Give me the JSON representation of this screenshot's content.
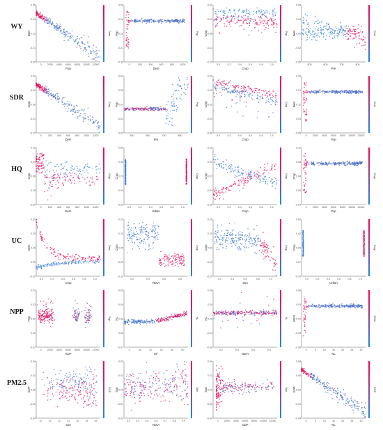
{
  "colors": {
    "low": "#1e88e5",
    "high": "#ff0052",
    "axis": "#333333",
    "tick": "#555555"
  },
  "rows": [
    {
      "label": "WY"
    },
    {
      "label": "SDR"
    },
    {
      "label": "HQ"
    },
    {
      "label": "UC"
    },
    {
      "label": "NPP"
    },
    {
      "label": "PM2.5"
    }
  ],
  "chart_data": [
    {
      "type": "scatter",
      "row": "WY",
      "xlabel": "Pop",
      "ylabel": "Dem",
      "clabel": "Dem",
      "shape": "decay_noisy",
      "xlim": [
        0,
        12000
      ],
      "ylim": [
        -0.3,
        0.05
      ],
      "xticks": [
        "0",
        "2000",
        "4000",
        "6000",
        "8000",
        "10000",
        "12000"
      ]
    },
    {
      "type": "scatter",
      "row": "WY",
      "xlabel": "Dem",
      "ylabel": "Pop",
      "clabel": "Pop",
      "shape": "spike_flat",
      "xlim": [
        0,
        1000
      ],
      "ylim": [
        -0.3,
        0.05
      ],
      "xticks": [
        "0",
        "200",
        "400",
        "600",
        "800",
        "1000"
      ]
    },
    {
      "type": "scatter",
      "row": "WY",
      "xlabel": "Crop",
      "ylabel": "Crop",
      "clabel": "Pop",
      "shape": "bands",
      "xlim": [
        0,
        1
      ],
      "ylim": [
        -0.15,
        0.02
      ],
      "xticks": [
        "0.0",
        "0.2",
        "0.4",
        "0.6",
        "0.8",
        "1.0"
      ]
    },
    {
      "type": "scatter",
      "row": "WY",
      "xlabel": "Pre",
      "ylabel": "Dem",
      "clabel": "Dem",
      "shape": "funnel_down",
      "xlim": [
        400,
        900
      ],
      "ylim": [
        -0.05,
        0.05
      ],
      "xticks": [
        "500",
        "600",
        "700",
        "800"
      ]
    },
    {
      "type": "scatter",
      "row": "SDR",
      "xlabel": "Dem",
      "ylabel": "Crop",
      "clabel": "Crop",
      "shape": "decay_noisy",
      "xlim": [
        0,
        1400
      ],
      "ylim": [
        -0.15,
        0.02
      ],
      "xticks": [
        "0",
        "200",
        "400",
        "600",
        "800",
        "1000",
        "1200"
      ]
    },
    {
      "type": "scatter",
      "row": "SDR",
      "xlabel": "Pre",
      "ylabel": "Pop",
      "clabel": "Pop",
      "shape": "step_up",
      "xlim": [
        400,
        900
      ],
      "ylim": [
        -0.02,
        0.04
      ],
      "xticks": [
        "500",
        "600",
        "700",
        "800"
      ]
    },
    {
      "type": "scatter",
      "row": "SDR",
      "xlabel": "Crop",
      "ylabel": "Crop",
      "clabel": "Crop",
      "shape": "slope_bands",
      "xlim": [
        0,
        1
      ],
      "ylim": [
        -0.06,
        0.02
      ],
      "xticks": [
        "0.0",
        "0.2",
        "0.4",
        "0.6",
        "0.8",
        "1.0"
      ]
    },
    {
      "type": "scatter",
      "row": "SDR",
      "xlabel": "Pop",
      "ylabel": "Dem",
      "clabel": "Dem",
      "shape": "spike_flat",
      "xlim": [
        0,
        12000
      ],
      "ylim": [
        -0.05,
        0.3
      ],
      "xticks": [
        "0",
        "2000",
        "4000",
        "6000",
        "8000",
        "10000",
        "12000"
      ]
    },
    {
      "type": "scatter",
      "row": "HQ",
      "xlabel": "Dem",
      "ylabel": "Crop",
      "clabel": "Crop",
      "shape": "split_h",
      "xlim": [
        0,
        1400
      ],
      "ylim": [
        -0.3,
        0.15
      ],
      "xticks": [
        "0",
        "200",
        "400",
        "600",
        "800",
        "1000",
        "1200"
      ]
    },
    {
      "type": "scatter",
      "row": "HQ",
      "xlabel": "Urban",
      "ylabel": "Crop",
      "clabel": "Crop",
      "shape": "vlines",
      "xlim": [
        0,
        1
      ],
      "ylim": [
        -0.2,
        0.6
      ],
      "xticks": [
        "0.0",
        "0.2",
        "0.4",
        "0.6",
        "0.8",
        "1.0"
      ]
    },
    {
      "type": "scatter",
      "row": "HQ",
      "xlabel": "Crop",
      "ylabel": "Crop",
      "clabel": "Crop",
      "shape": "cross",
      "xlim": [
        0,
        1
      ],
      "ylim": [
        -0.15,
        0.1
      ],
      "xticks": [
        "0.0",
        "0.2",
        "0.4",
        "0.6",
        "0.8",
        "1.0"
      ]
    },
    {
      "type": "scatter",
      "row": "HQ",
      "xlabel": "Pop",
      "ylabel": "Crop",
      "clabel": "Crop",
      "shape": "spike_flat",
      "xlim": [
        0,
        12000
      ],
      "ylim": [
        -0.04,
        0.12
      ],
      "xticks": [
        "0",
        "2000",
        "4000",
        "6000",
        "8000",
        "10000",
        "12000"
      ]
    },
    {
      "type": "scatter",
      "row": "UC",
      "xlabel": "Crop",
      "ylabel": "Dem",
      "clabel": "Dem",
      "shape": "decay_two",
      "xlim": [
        0,
        1
      ],
      "ylim": [
        -0.05,
        0.35
      ],
      "xticks": [
        "0.0",
        "0.2",
        "0.4",
        "0.6",
        "0.8",
        "1.0"
      ]
    },
    {
      "type": "scatter",
      "row": "UC",
      "xlabel": "NDVI",
      "ylabel": "Crop",
      "clabel": "Crop",
      "shape": "step_down",
      "xlim": [
        0,
        1
      ],
      "ylim": [
        -0.1,
        0.2
      ],
      "xticks": [
        "0.2",
        "0.4",
        "0.6",
        "0.8"
      ]
    },
    {
      "type": "scatter",
      "row": "UC",
      "xlabel": "Sun",
      "ylabel": "Crop",
      "clabel": "Crop",
      "shape": "fall_end",
      "xlim": [
        0,
        1
      ],
      "ylim": [
        -0.2,
        0.2
      ],
      "xticks": [
        "0.2",
        "0.4",
        "0.6",
        "0.8",
        "1.0"
      ]
    },
    {
      "type": "scatter",
      "row": "UC",
      "xlabel": "Urban",
      "ylabel": "Crop",
      "clabel": "Crop",
      "shape": "vlines",
      "xlim": [
        0,
        1
      ],
      "ylim": [
        -0.1,
        0.6
      ],
      "xticks": [
        "0.0",
        "0.2",
        "0.4",
        "0.6",
        "0.8",
        "1.0"
      ]
    },
    {
      "type": "scatter",
      "row": "NPP",
      "xlabel": "GDP",
      "ylabel": "Pop",
      "clabel": "Pop",
      "shape": "clusters",
      "xlim": [
        0,
        12000
      ],
      "ylim": [
        -0.02,
        0.05
      ],
      "xticks": [
        "0",
        "2000",
        "4000",
        "6000",
        "8000",
        "10000",
        "12000"
      ]
    },
    {
      "type": "scatter",
      "row": "NPP",
      "xlabel": "EF",
      "ylabel": "NL",
      "clabel": "NL",
      "shape": "flat_rise",
      "xlim": [
        0,
        1
      ],
      "ylim": [
        -0.02,
        0.06
      ],
      "xticks": [
        "0",
        "10",
        "20",
        "30",
        "40",
        "50"
      ]
    },
    {
      "type": "scatter",
      "row": "NPP",
      "xlabel": "NDVI",
      "ylabel": "NL",
      "clabel": "NL",
      "shape": "flat_band",
      "xlim": [
        0,
        1
      ],
      "ylim": [
        -0.08,
        0.08
      ],
      "xticks": [
        "0.2",
        "0.4",
        "0.6",
        "0.8"
      ]
    },
    {
      "type": "scatter",
      "row": "NPP",
      "xlabel": "NL",
      "ylabel": "NDVI",
      "clabel": "NDVI",
      "shape": "spike_flat",
      "xlim": [
        0,
        30
      ],
      "ylim": [
        -0.08,
        0.08
      ],
      "xticks": [
        "0",
        "5",
        "10",
        "15",
        "20",
        "25",
        "30"
      ]
    },
    {
      "type": "scatter",
      "row": "PM2.5",
      "xlabel": "Sun",
      "ylabel": "GDP",
      "clabel": "GDP",
      "shape": "rise_wall",
      "xlim": [
        0,
        1
      ],
      "ylim": [
        -0.04,
        0.04
      ],
      "xticks": [
        "10",
        "11",
        "12",
        "13",
        "14",
        "15",
        "16"
      ]
    },
    {
      "type": "scatter",
      "row": "PM2.5",
      "xlabel": "NDVI",
      "ylabel": "Sun",
      "clabel": "Sun",
      "shape": "dense_band",
      "xlim": [
        0,
        1
      ],
      "ylim": [
        -0.03,
        0.03
      ],
      "xticks": [
        "0.3",
        "0.4",
        "0.5",
        "0.6",
        "0.7",
        "0.8",
        "0.9"
      ]
    },
    {
      "type": "scatter",
      "row": "PM2.5",
      "xlabel": "GDP",
      "ylabel": "Sun",
      "clabel": "Sun",
      "shape": "left_blob",
      "xlim": [
        0,
        12000
      ],
      "ylim": [
        -0.04,
        0.04
      ],
      "xticks": [
        "0",
        "2000",
        "4000",
        "6000",
        "8000",
        "10000",
        "12000"
      ]
    },
    {
      "type": "scatter",
      "row": "PM2.5",
      "xlabel": "NL",
      "ylabel": "GDP",
      "clabel": "GDP",
      "shape": "decay_noisy",
      "xlim": [
        0,
        30
      ],
      "ylim": [
        -0.04,
        0.08
      ],
      "xticks": [
        "0",
        "5",
        "10",
        "15",
        "20",
        "25",
        "30"
      ]
    }
  ]
}
